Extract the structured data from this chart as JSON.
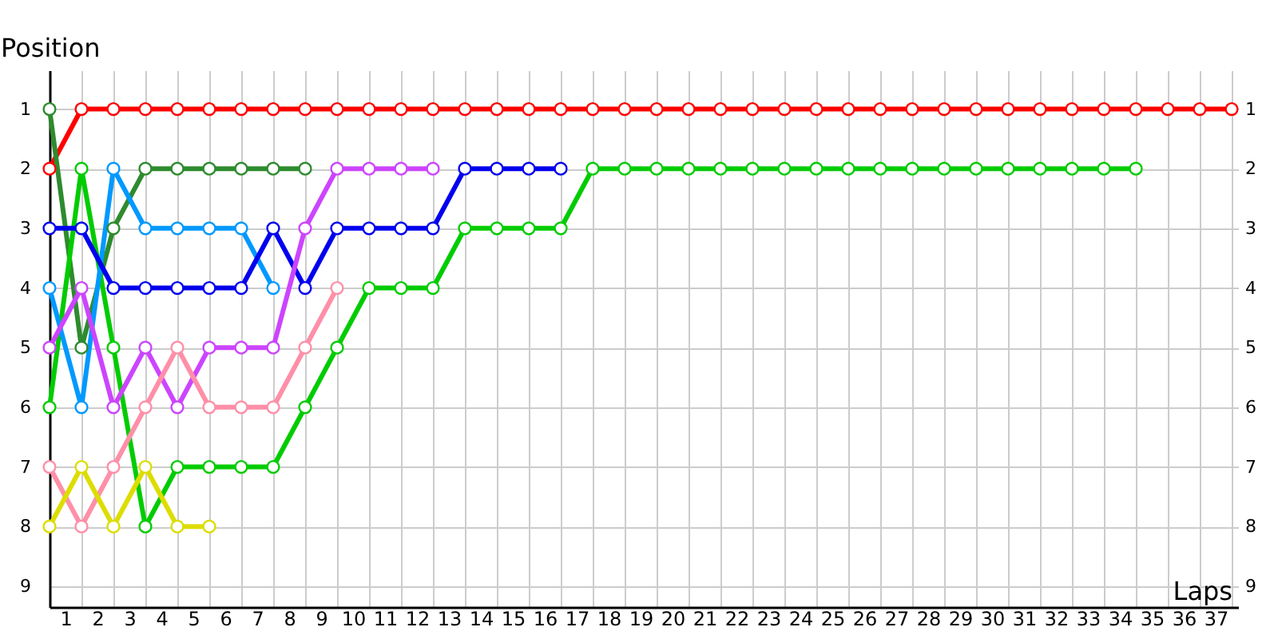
{
  "chart_data": {
    "type": "line",
    "xlabel": "Laps",
    "ylabel": "Position",
    "x": [
      0,
      1,
      2,
      3,
      4,
      5,
      6,
      7,
      8,
      9,
      10,
      11,
      12,
      13,
      14,
      15,
      16,
      17,
      18,
      19,
      20,
      21,
      22,
      23,
      24,
      25,
      26,
      27,
      28,
      29,
      30,
      31,
      32,
      33,
      34,
      35,
      36,
      37
    ],
    "xlim": [
      0,
      37.2
    ],
    "xticks": [
      {
        "value": 0.5,
        "label": "1"
      },
      {
        "value": 1,
        "label": null
      },
      {
        "value": 1.5,
        "label": "2"
      },
      {
        "value": 2,
        "label": null
      },
      {
        "value": 2.5,
        "label": "3"
      },
      {
        "value": 3,
        "label": null
      },
      {
        "value": 3.5,
        "label": "4"
      },
      {
        "value": 4,
        "label": null
      },
      {
        "value": 4.5,
        "label": "5"
      },
      {
        "value": 5,
        "label": null
      },
      {
        "value": 5.5,
        "label": "6"
      },
      {
        "value": 6,
        "label": null
      },
      {
        "value": 6.5,
        "label": "7"
      },
      {
        "value": 7,
        "label": null
      },
      {
        "value": 7.5,
        "label": "8"
      },
      {
        "value": 8,
        "label": null
      },
      {
        "value": 8.5,
        "label": "9"
      },
      {
        "value": 9,
        "label": null
      },
      {
        "value": 9.5,
        "label": "10"
      },
      {
        "value": 10,
        "label": null
      },
      {
        "value": 10.5,
        "label": "11"
      },
      {
        "value": 11,
        "label": null
      },
      {
        "value": 11.5,
        "label": "12"
      },
      {
        "value": 12,
        "label": null
      },
      {
        "value": 12.5,
        "label": "13"
      },
      {
        "value": 13,
        "label": null
      },
      {
        "value": 13.5,
        "label": "14"
      },
      {
        "value": 14,
        "label": null
      },
      {
        "value": 14.5,
        "label": "15"
      },
      {
        "value": 15,
        "label": null
      },
      {
        "value": 15.5,
        "label": "16"
      },
      {
        "value": 16,
        "label": null
      },
      {
        "value": 16.5,
        "label": "17"
      },
      {
        "value": 17,
        "label": null
      },
      {
        "value": 17.5,
        "label": "18"
      },
      {
        "value": 18,
        "label": null
      },
      {
        "value": 18.5,
        "label": "19"
      },
      {
        "value": 19,
        "label": null
      },
      {
        "value": 19.5,
        "label": "20"
      },
      {
        "value": 20,
        "label": null
      },
      {
        "value": 20.5,
        "label": "21"
      },
      {
        "value": 21,
        "label": null
      },
      {
        "value": 21.5,
        "label": "22"
      },
      {
        "value": 22,
        "label": null
      },
      {
        "value": 22.5,
        "label": "23"
      },
      {
        "value": 23,
        "label": null
      },
      {
        "value": 23.5,
        "label": "24"
      },
      {
        "value": 24,
        "label": null
      },
      {
        "value": 24.5,
        "label": "25"
      },
      {
        "value": 25,
        "label": null
      },
      {
        "value": 25.5,
        "label": "26"
      },
      {
        "value": 26,
        "label": null
      },
      {
        "value": 26.5,
        "label": "27"
      },
      {
        "value": 27,
        "label": null
      },
      {
        "value": 27.5,
        "label": "28"
      },
      {
        "value": 28,
        "label": null
      },
      {
        "value": 28.5,
        "label": "29"
      },
      {
        "value": 29,
        "label": null
      },
      {
        "value": 29.5,
        "label": "30"
      },
      {
        "value": 30,
        "label": null
      },
      {
        "value": 30.5,
        "label": "31"
      },
      {
        "value": 31,
        "label": null
      },
      {
        "value": 31.5,
        "label": "32"
      },
      {
        "value": 32,
        "label": null
      },
      {
        "value": 32.5,
        "label": "33"
      },
      {
        "value": 33,
        "label": null
      },
      {
        "value": 33.5,
        "label": "34"
      },
      {
        "value": 34,
        "label": null
      },
      {
        "value": 34.5,
        "label": "35"
      },
      {
        "value": 35,
        "label": null
      },
      {
        "value": 35.5,
        "label": "36"
      },
      {
        "value": 36,
        "label": null
      },
      {
        "value": 36.5,
        "label": "37"
      },
      {
        "value": 37,
        "label": null
      }
    ],
    "ylim": [
      9.35,
      0.35
    ],
    "yticks": [
      1,
      2,
      3,
      4,
      5,
      6,
      7,
      8,
      9
    ],
    "y2lim": [
      9.35,
      0.35
    ],
    "y2ticks": [
      1,
      2,
      3,
      4,
      5,
      6,
      7,
      8,
      9
    ],
    "grid": true,
    "marker": "circle",
    "line_style": "solid",
    "series": [
      {
        "color": "#ff0000",
        "values": [
          2,
          1,
          1,
          1,
          1,
          1,
          1,
          1,
          1,
          1,
          1,
          1,
          1,
          1,
          1,
          1,
          1,
          1,
          1,
          1,
          1,
          1,
          1,
          1,
          1,
          1,
          1,
          1,
          1,
          1,
          1,
          1,
          1,
          1,
          1,
          1,
          1,
          1
        ]
      },
      {
        "color": "#2e8b2e",
        "values": [
          1,
          5,
          3,
          2,
          2,
          2,
          2,
          2,
          2,
          null,
          null,
          null,
          null,
          null,
          null,
          null,
          null,
          null,
          null,
          null,
          null,
          null,
          null,
          null,
          null,
          null,
          null,
          null,
          null,
          null,
          null,
          null,
          null,
          null,
          null,
          null,
          null,
          null
        ]
      },
      {
        "color": "#00cc00",
        "values": [
          6,
          2,
          5,
          8,
          7,
          7,
          7,
          7,
          6,
          5,
          4,
          4,
          4,
          3,
          3,
          3,
          3,
          2,
          2,
          2,
          2,
          2,
          2,
          2,
          2,
          2,
          2,
          2,
          2,
          2,
          2,
          2,
          2,
          2,
          2,
          null,
          null,
          null
        ]
      },
      {
        "color": "#0099ff",
        "values": [
          4,
          6,
          2,
          3,
          3,
          3,
          3,
          4,
          null,
          null,
          null,
          null,
          null,
          null,
          null,
          null,
          null,
          null,
          null,
          null,
          null,
          null,
          null,
          null,
          null,
          null,
          null,
          null,
          null,
          null,
          null,
          null,
          null,
          null,
          null,
          null,
          null,
          null
        ]
      },
      {
        "color": "#0000ee",
        "values": [
          3,
          3,
          4,
          4,
          4,
          4,
          4,
          3,
          4,
          3,
          3,
          3,
          3,
          2,
          2,
          2,
          2,
          null,
          null,
          null,
          null,
          null,
          null,
          null,
          null,
          null,
          null,
          null,
          null,
          null,
          null,
          null,
          null,
          null,
          null,
          null,
          null,
          null
        ]
      },
      {
        "color": "#cc44ff",
        "values": [
          5,
          4,
          6,
          5,
          6,
          5,
          5,
          5,
          3,
          2,
          2,
          2,
          2,
          null,
          null,
          null,
          null,
          null,
          null,
          null,
          null,
          null,
          null,
          null,
          null,
          null,
          null,
          null,
          null,
          null,
          null,
          null,
          null,
          null,
          null,
          null,
          null,
          null
        ]
      },
      {
        "color": "#ff8fa8",
        "values": [
          7,
          8,
          7,
          6,
          5,
          6,
          6,
          6,
          5,
          4,
          null,
          null,
          null,
          null,
          null,
          null,
          null,
          null,
          null,
          null,
          null,
          null,
          null,
          null,
          null,
          null,
          null,
          null,
          null,
          null,
          null,
          null,
          null,
          null,
          null,
          null,
          null,
          null
        ]
      },
      {
        "color": "#dddd00",
        "values": [
          8,
          7,
          8,
          7,
          8,
          8,
          null,
          null,
          null,
          null,
          null,
          null,
          null,
          null,
          null,
          null,
          null,
          null,
          null,
          null,
          null,
          null,
          null,
          null,
          null,
          null,
          null,
          null,
          null,
          null,
          null,
          null,
          null,
          null,
          null,
          null,
          null,
          null
        ]
      }
    ]
  }
}
